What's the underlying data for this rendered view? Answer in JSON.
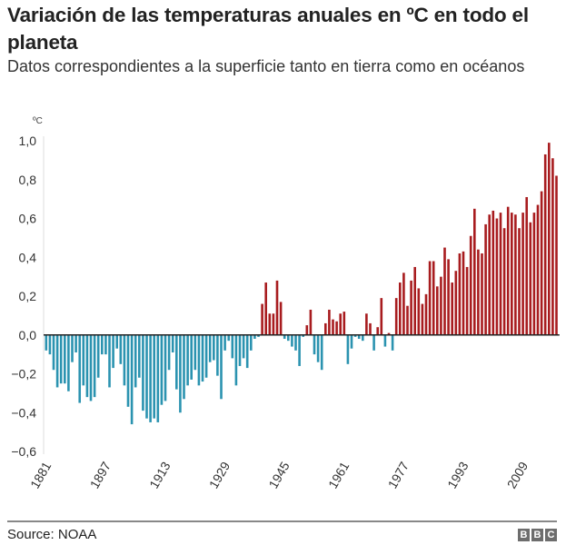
{
  "header": {
    "title": "Variación de las temperaturas anuales en ºC en todo el planeta",
    "subtitle": "Datos correspondientes a la superficie tanto en tierra como en océanos"
  },
  "footer": {
    "source": "Source: NOAA",
    "logo": [
      "B",
      "B",
      "C"
    ]
  },
  "colors": {
    "positive": "#a81c1f",
    "negative": "#2b93b0",
    "zero_line": "#222222",
    "axis_line": "#dddddd"
  },
  "chart_data": {
    "type": "bar",
    "title": "Variación de las temperaturas anuales en ºC en todo el planeta",
    "subtitle": "Datos correspondientes a la superficie tanto en tierra como en océanos",
    "ylabel": "ºC",
    "xlabel": "",
    "ylim": [
      -0.6,
      1.0
    ],
    "yticks": [
      1.0,
      0.8,
      0.6,
      0.4,
      0.2,
      0.0,
      -0.2,
      -0.4,
      -0.6
    ],
    "ytick_labels": [
      "1,0",
      "0,8",
      "0,6",
      "0,4",
      "0,2",
      "0,0",
      "−0,2",
      "−0,4",
      "−0,6"
    ],
    "xtick_labels": [
      "1881",
      "1897",
      "1913",
      "1929",
      "1945",
      "1961",
      "1977",
      "1993",
      "2009"
    ],
    "grid": false,
    "x_start": 1881,
    "x_end": 2018,
    "values": [
      -0.08,
      -0.1,
      -0.18,
      -0.27,
      -0.25,
      -0.25,
      -0.29,
      -0.14,
      -0.09,
      -0.35,
      -0.26,
      -0.32,
      -0.34,
      -0.32,
      -0.22,
      -0.1,
      -0.1,
      -0.27,
      -0.17,
      -0.07,
      -0.15,
      -0.26,
      -0.37,
      -0.46,
      -0.27,
      -0.22,
      -0.39,
      -0.43,
      -0.45,
      -0.43,
      -0.45,
      -0.36,
      -0.34,
      -0.18,
      -0.09,
      -0.28,
      -0.4,
      -0.33,
      -0.26,
      -0.23,
      -0.18,
      -0.26,
      -0.24,
      -0.22,
      -0.14,
      -0.13,
      -0.21,
      -0.33,
      -0.08,
      -0.03,
      -0.12,
      -0.26,
      -0.16,
      -0.12,
      -0.17,
      -0.08,
      -0.02,
      -0.01,
      0.16,
      0.27,
      0.11,
      0.11,
      0.28,
      0.17,
      -0.02,
      -0.03,
      -0.06,
      -0.08,
      -0.16,
      -0.01,
      0.05,
      0.13,
      -0.1,
      -0.14,
      -0.18,
      0.06,
      0.13,
      0.08,
      0.07,
      0.11,
      0.12,
      -0.15,
      -0.07,
      -0.01,
      -0.02,
      -0.03,
      0.11,
      0.06,
      -0.08,
      0.04,
      0.19,
      -0.06,
      0.01,
      -0.08,
      0.19,
      0.27,
      0.32,
      0.15,
      0.28,
      0.35,
      0.24,
      0.16,
      0.21,
      0.38,
      0.38,
      0.25,
      0.3,
      0.45,
      0.39,
      0.27,
      0.33,
      0.42,
      0.43,
      0.35,
      0.51,
      0.65,
      0.44,
      0.42,
      0.57,
      0.62,
      0.64,
      0.6,
      0.63,
      0.55,
      0.66,
      0.63,
      0.62,
      0.55,
      0.63,
      0.71,
      0.58,
      0.63,
      0.67,
      0.74,
      0.93,
      0.99,
      0.91,
      0.82
    ]
  }
}
